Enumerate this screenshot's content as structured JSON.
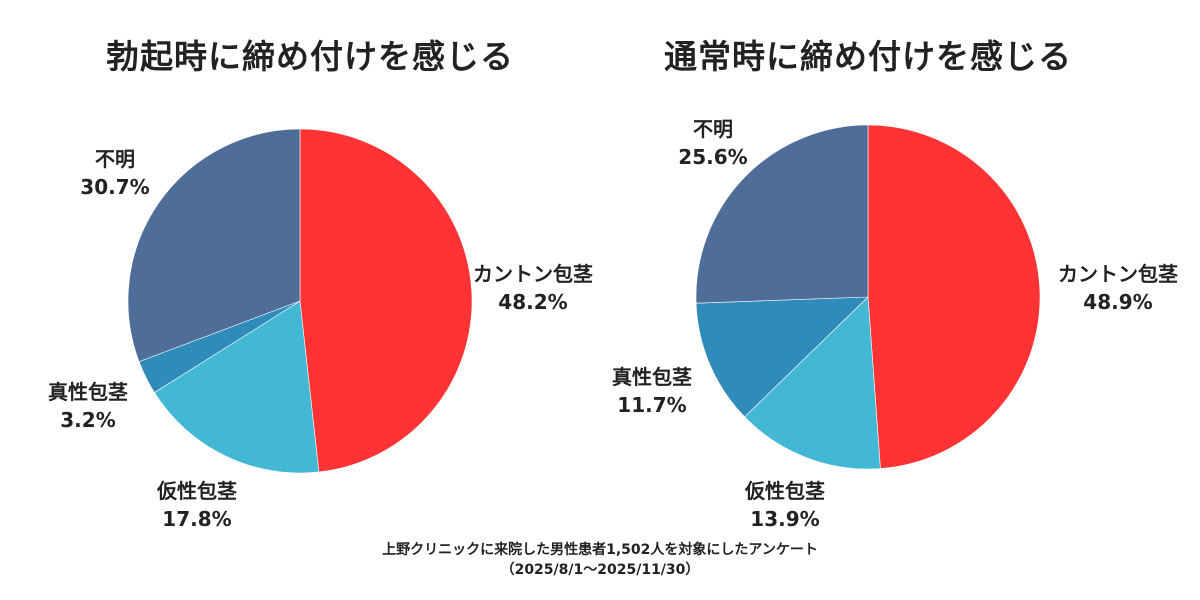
{
  "chart_data": [
    {
      "type": "pie",
      "title": "勃起時に締め付けを感じる",
      "slices": [
        {
          "label": "カントン包茎",
          "value": 48.2,
          "value_label": "48.2%",
          "color": "#FF3333"
        },
        {
          "label": "仮性包茎",
          "value": 17.8,
          "value_label": "17.8%",
          "color": "#42B8D4"
        },
        {
          "label": "真性包茎",
          "value": 3.2,
          "value_label": "3.2%",
          "color": "#2E8BBA"
        },
        {
          "label": "不明",
          "value": 30.7,
          "value_label": "30.7%",
          "color": "#4F6D99"
        }
      ]
    },
    {
      "type": "pie",
      "title": "通常時に締め付けを感じる",
      "slices": [
        {
          "label": "カントン包茎",
          "value": 48.9,
          "value_label": "48.9%",
          "color": "#FF3333"
        },
        {
          "label": "仮性包茎",
          "value": 13.9,
          "value_label": "13.9%",
          "color": "#42B8D4"
        },
        {
          "label": "真性包茎",
          "value": 11.7,
          "value_label": "11.7%",
          "color": "#2E8BBA"
        },
        {
          "label": "不明",
          "value": 25.6,
          "value_label": "25.6%",
          "color": "#4F6D99"
        }
      ]
    }
  ],
  "footer": {
    "line1": "上野クリニックに来院した男性患者1,502人を対象にしたアンケート",
    "line2": "（2025/8/1〜2025/11/30）"
  }
}
